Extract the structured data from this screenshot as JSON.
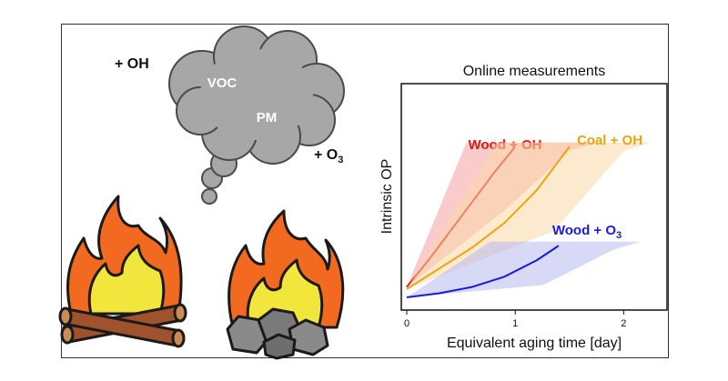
{
  "labels": {
    "oh": "+ OH",
    "o3_prefix": "+ O",
    "o3_sub": "3",
    "voc": "VOC",
    "pm": "PM"
  },
  "chart_data": {
    "type": "line",
    "title": "Online measurements",
    "xlabel": "Equivalent aging time [day]",
    "ylabel": "Intrinsic OP",
    "xticks": [
      "0",
      "1",
      "2"
    ],
    "xlim": [
      0,
      2.4
    ],
    "series": [
      {
        "name": "Wood + OH",
        "label_main": "Wood + OH",
        "label_sub": "",
        "color": "#e01818",
        "band": "#f4a0a0",
        "x": [
          0,
          0.2,
          0.4,
          0.6,
          0.8,
          1.0
        ],
        "y": [
          0.05,
          0.18,
          0.32,
          0.46,
          0.6,
          0.73
        ]
      },
      {
        "name": "Coal + OH",
        "label_main": "Coal + OH",
        "label_sub": "",
        "color": "#f2a20c",
        "band": "#f9d9a8",
        "x": [
          0,
          0.3,
          0.6,
          0.9,
          1.2,
          1.5
        ],
        "y": [
          0.04,
          0.14,
          0.24,
          0.36,
          0.52,
          0.73
        ]
      },
      {
        "name": "Wood + O3",
        "label_main": "Wood + O",
        "label_sub": "3",
        "color": "#1a1adb",
        "band": "#b8b8f0",
        "x": [
          0,
          0.3,
          0.6,
          0.9,
          1.2,
          1.4
        ],
        "y": [
          0.0,
          0.02,
          0.05,
          0.1,
          0.18,
          0.25
        ]
      }
    ]
  }
}
